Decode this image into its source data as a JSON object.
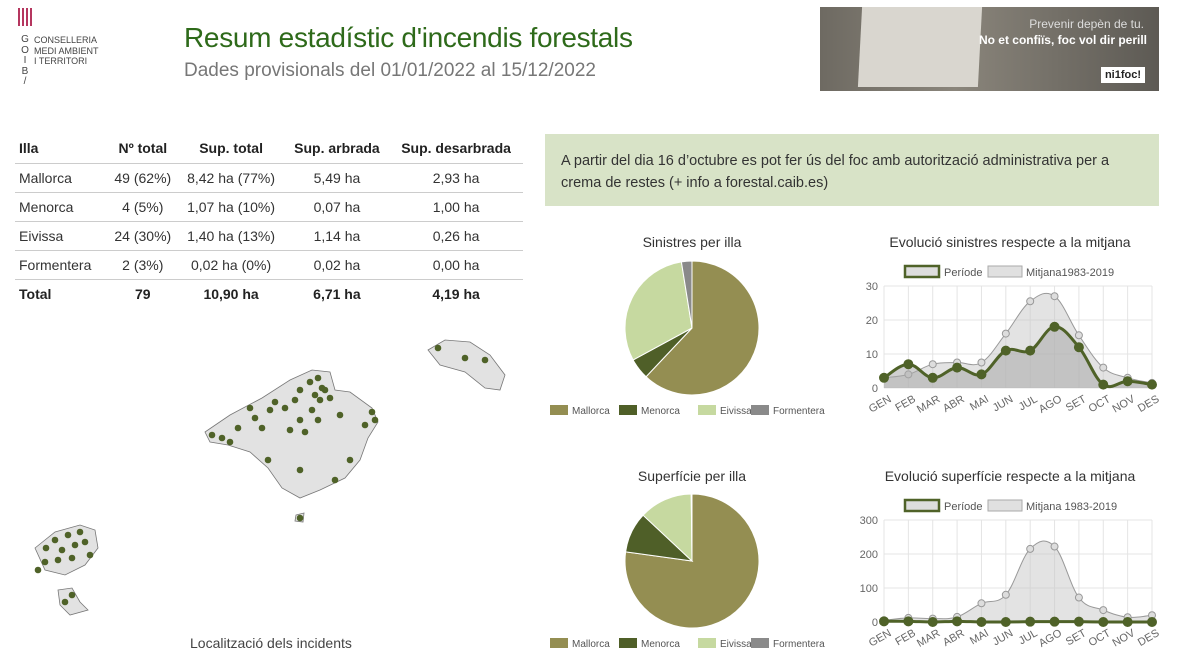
{
  "logo": {
    "emblem": "GOIB",
    "lines": [
      "CONSELLERIA",
      "MEDI AMBIENT",
      "I TERRITORI"
    ],
    "letters": [
      "G",
      "O",
      "I",
      "B",
      "/"
    ]
  },
  "header": {
    "title": "Resum estadístic d'incendis forestals",
    "subtitle": "Dades provisionals del 01/01/2022 al 15/12/2022"
  },
  "banner": {
    "line1": "Prevenir depèn de tu.",
    "line2": "No et confiïs, foc vol dir perill",
    "logo": "ni1foc!"
  },
  "table": {
    "headers": [
      "Illa",
      "Nº total",
      "Sup. total",
      "Sup. arbrada",
      "Sup. desarbrada"
    ],
    "rows": [
      [
        "Mallorca",
        "49 (62%)",
        "8,42 ha (77%)",
        "5,49 ha",
        "2,93 ha"
      ],
      [
        "Menorca",
        "4 (5%)",
        "1,07 ha (10%)",
        "0,07 ha",
        "1,00 ha"
      ],
      [
        "Eivissa",
        "24 (30%)",
        "1,40 ha (13%)",
        "1,14 ha",
        "0,26 ha"
      ],
      [
        "Formentera",
        "2 (3%)",
        "0,02 ha (0%)",
        "0,02 ha",
        "0,00 ha"
      ]
    ],
    "total": [
      "Total",
      "79",
      "10,90 ha",
      "6,71 ha",
      "4,19 ha"
    ]
  },
  "info": "A partir del dia 16 d’octubre es pot fer ús del foc amb autorització administrativa per a crema de restes (+ info a forestal.caib.es)",
  "map": {
    "label": "Localització dels incidents"
  },
  "colors": {
    "Mallorca": "#948e52",
    "Menorca": "#4f5f28",
    "Eivissa": "#c6d9a0",
    "Formentera": "#8a8a8a",
    "periode": "#4f6228",
    "mitjana": "#999999"
  },
  "chart_data": [
    {
      "type": "pie",
      "title": "Sinistres per illa",
      "categories": [
        "Mallorca",
        "Menorca",
        "Eivissa",
        "Formentera"
      ],
      "values": [
        49,
        4,
        24,
        2
      ]
    },
    {
      "type": "pie",
      "title": "Superfície per illa",
      "categories": [
        "Mallorca",
        "Menorca",
        "Eivissa",
        "Formentera"
      ],
      "values": [
        8.42,
        1.07,
        1.4,
        0.02
      ]
    },
    {
      "type": "line",
      "title": "Evolució sinistres respecte a la mitjana",
      "categories": [
        "GEN",
        "FEB",
        "MAR",
        "ABR",
        "MAI",
        "JUN",
        "JUL",
        "AGO",
        "SET",
        "OCT",
        "NOV",
        "DES"
      ],
      "ylim": [
        0,
        30
      ],
      "yticks": [
        0,
        10,
        20,
        30
      ],
      "grid": true,
      "legend": "top",
      "series": [
        {
          "name": "Període",
          "values": [
            3,
            7,
            3,
            6,
            4,
            11,
            11,
            18,
            12,
            1,
            2,
            1
          ]
        },
        {
          "name": "Mitjana1983-2019",
          "values": [
            3,
            4,
            7,
            7.5,
            7.5,
            16,
            25.5,
            27,
            15.5,
            6,
            3,
            1.5
          ]
        }
      ]
    },
    {
      "type": "line",
      "title": "Evolució superfície respecte a la mitjana",
      "categories": [
        "GEN",
        "FEB",
        "MAR",
        "ABR",
        "MAI",
        "JUN",
        "JUL",
        "AGO",
        "SET",
        "OCT",
        "NOV",
        "DES"
      ],
      "ylim": [
        0,
        300
      ],
      "yticks": [
        0,
        100,
        200,
        300
      ],
      "grid": true,
      "legend": "top",
      "series": [
        {
          "name": "Període",
          "values": [
            2,
            2,
            0,
            2,
            0,
            0,
            1,
            1,
            1,
            0,
            0,
            0
          ]
        },
        {
          "name": "Mitjana 1983-2019",
          "values": [
            5,
            12,
            10,
            15,
            55,
            80,
            215,
            222,
            72,
            35,
            14,
            20
          ]
        }
      ]
    }
  ]
}
